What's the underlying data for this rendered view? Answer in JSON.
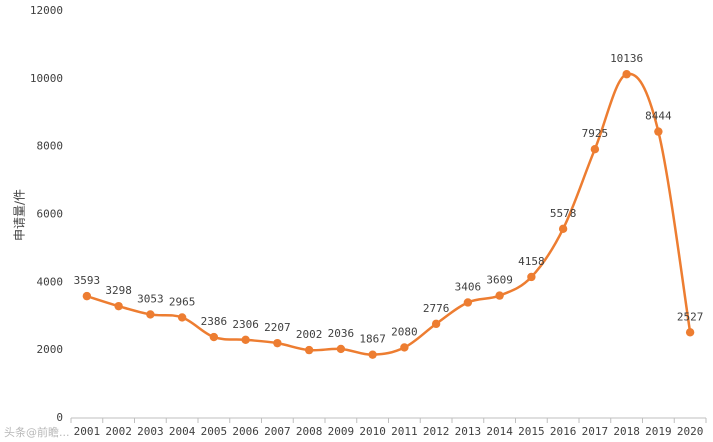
{
  "chart_data": {
    "type": "line",
    "ylabel": "申请量/件",
    "ylim": [
      0,
      12000
    ],
    "yticks": [
      0,
      2000,
      4000,
      6000,
      8000,
      10000,
      12000
    ],
    "categories": [
      "2001",
      "2002",
      "2003",
      "2004",
      "2005",
      "2006",
      "2007",
      "2008",
      "2009",
      "2010",
      "2011",
      "2012",
      "2013",
      "2014",
      "2015",
      "2016",
      "2017",
      "2018",
      "2019",
      "2020"
    ],
    "series": [
      {
        "values": [
          3593,
          3298,
          3053,
          2965,
          2386,
          2306,
          2207,
          2002,
          2036,
          1867,
          2080,
          2776,
          3406,
          3609,
          4158,
          5578,
          7925,
          10136,
          8444,
          2527
        ]
      }
    ],
    "grid": false,
    "legend": "none",
    "line_color": "#ED7D31"
  },
  "watermark": "头条@前瞻..."
}
